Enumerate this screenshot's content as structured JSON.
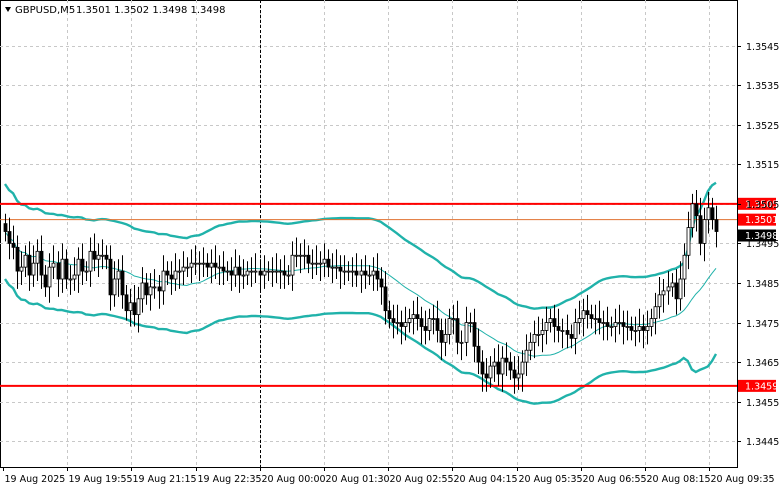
{
  "header": {
    "symbol": "GBPUSD,M5",
    "ohlc": "1.3501 1.3502 1.3498 1.3498"
  },
  "colors": {
    "background": "#ffffff",
    "grid": "#c8c8c8",
    "candle": "#000000",
    "bollinger": "#20b2aa",
    "moving_average": "#20b2aa",
    "level_lines": "#ff0000",
    "bid_line": "#e07030",
    "bid_tag": "#ff0000",
    "last_price_tag": "#000000"
  },
  "chart_data": {
    "type": "candlestick",
    "title": "GBPUSD,M5",
    "ylim": [
      1.34385,
      1.35565
    ],
    "y_ticks": [
      "1.3545",
      "1.3535",
      "1.3525",
      "1.3515",
      "1.3505",
      "1.3495",
      "1.3485",
      "1.3475",
      "1.3465",
      "1.3455",
      "1.3445"
    ],
    "x_ticks": [
      "19 Aug 2025",
      "19 Aug 19:55",
      "19 Aug 21:15",
      "19 Aug 22:35",
      "20 Aug 00:00",
      "20 Aug 01:30",
      "20 Aug 02:55",
      "20 Aug 04:15",
      "20 Aug 05:35",
      "20 Aug 06:55",
      "20 Aug 08:15",
      "20 Aug 09:35"
    ],
    "grid": true,
    "horizontal_levels": [
      {
        "price": 1.3505,
        "label": "1.3505"
      },
      {
        "price": 1.3459,
        "label": "1.3459"
      }
    ],
    "bid_level": {
      "price": 1.3501,
      "label": "1.3501"
    },
    "last_price": {
      "price": 1.3498,
      "label": "1.3498"
    },
    "period_separator_at": "20 Aug 00:00",
    "closes": [
      1.3498,
      1.3495,
      1.3494,
      1.3488,
      1.3489,
      1.3492,
      1.3487,
      1.349,
      1.3493,
      1.3487,
      1.3484,
      1.3489,
      1.349,
      1.3486,
      1.3491,
      1.3486,
      1.3486,
      1.3487,
      1.3491,
      1.3488,
      1.3488,
      1.3493,
      1.3491,
      1.3492,
      1.3492,
      1.3491,
      1.3482,
      1.3486,
      1.3488,
      1.3482,
      1.3478,
      1.348,
      1.3477,
      1.3481,
      1.3485,
      1.3482,
      1.3484,
      1.3484,
      1.3483,
      1.3488,
      1.3487,
      1.3486,
      1.3488,
      1.3488,
      1.3489,
      1.3489,
      1.349,
      1.349,
      1.349,
      1.349,
      1.3489,
      1.349,
      1.3489,
      1.3489,
      1.3488,
      1.3488,
      1.3487,
      1.3489,
      1.3487,
      1.3487,
      1.3488,
      1.3488,
      1.3488,
      1.3487,
      1.3488,
      1.3488,
      1.3488,
      1.3488,
      1.3488,
      1.3487,
      1.3487,
      1.3492,
      1.3492,
      1.3492,
      1.3492,
      1.349,
      1.349,
      1.349,
      1.349,
      1.3491,
      1.3489,
      1.3489,
      1.3489,
      1.3488,
      1.3488,
      1.3488,
      1.3488,
      1.3487,
      1.3488,
      1.3487,
      1.3487,
      1.3488,
      1.3486,
      1.3484,
      1.3478,
      1.3476,
      1.3475,
      1.3475,
      1.3474,
      1.3475,
      1.3476,
      1.3477,
      1.3476,
      1.3474,
      1.3473,
      1.3476,
      1.3476,
      1.3473,
      1.347,
      1.3472,
      1.3476,
      1.3476,
      1.347,
      1.347,
      1.3475,
      1.3475,
      1.3469,
      1.3465,
      1.3462,
      1.3461,
      1.3464,
      1.3465,
      1.3462,
      1.3466,
      1.3465,
      1.3463,
      1.3461,
      1.3462,
      1.3465,
      1.3468,
      1.347,
      1.3472,
      1.3472,
      1.3473,
      1.3475,
      1.3476,
      1.3474,
      1.3473,
      1.3473,
      1.3472,
      1.3471,
      1.3475,
      1.3476,
      1.3478,
      1.3477,
      1.3476,
      1.3476,
      1.3475,
      1.3475,
      1.3474,
      1.3474,
      1.3475,
      1.3475,
      1.3474,
      1.3474,
      1.3473,
      1.3473,
      1.3474,
      1.3473,
      1.3474,
      1.3476,
      1.3479,
      1.3482,
      1.3483,
      1.3484,
      1.3485,
      1.3481,
      1.3486,
      1.3492,
      1.3499,
      1.3505,
      1.3502,
      1.3495,
      1.3501,
      1.3504,
      1.3501,
      1.3498
    ]
  }
}
